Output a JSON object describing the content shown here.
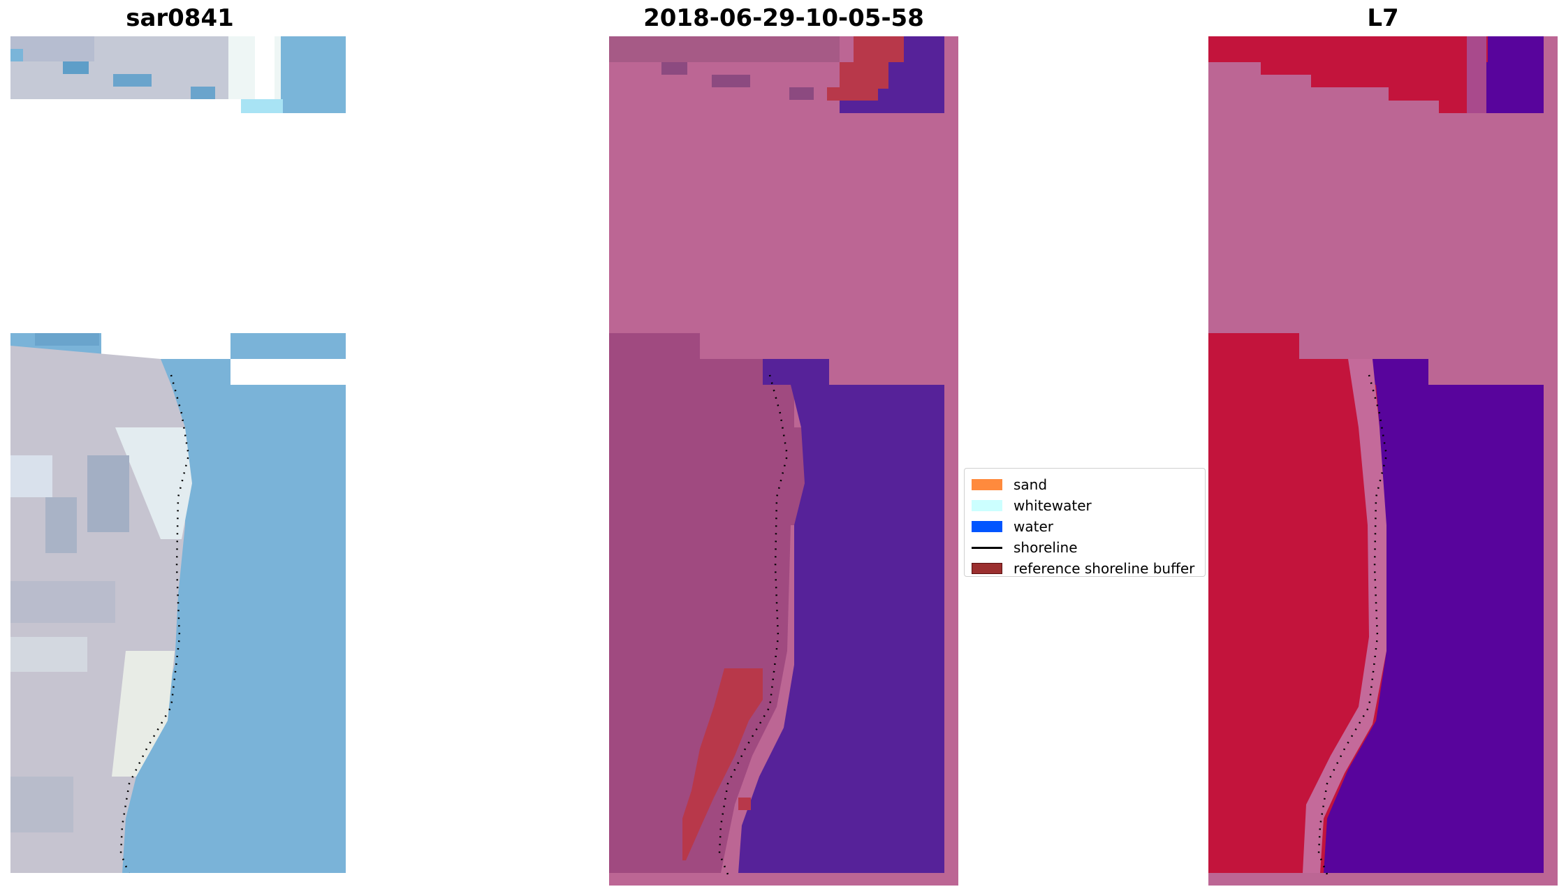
{
  "panels": [
    {
      "title": "sar0841"
    },
    {
      "title": "2018-06-29-10-05-58"
    },
    {
      "title": "L7"
    }
  ],
  "legend": {
    "items": [
      {
        "label": "sand",
        "color": "#ff8a3d",
        "kind": "patch"
      },
      {
        "label": "whitewater",
        "color": "#ccffff",
        "kind": "patch"
      },
      {
        "label": "water",
        "color": "#0055ff",
        "kind": "patch"
      },
      {
        "label": "shoreline",
        "color": "#000000",
        "kind": "line"
      },
      {
        "label": "reference shoreline buffer",
        "color": "#9b2f2f",
        "kind": "patch"
      }
    ]
  },
  "colors": {
    "rgb_sand": "#c7c5d1",
    "rgb_water": "#7ab5d9",
    "overlay_land": "#bc6694",
    "overlay_land_dark": "#a04a80",
    "overlay_water": "#562299",
    "overlay_buffer": "#b8384a",
    "index_land": "#c3143c",
    "index_water": "#58049c"
  }
}
